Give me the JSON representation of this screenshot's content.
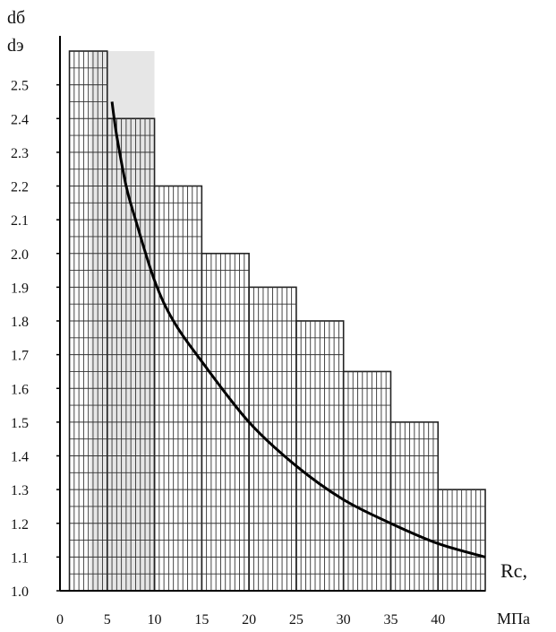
{
  "chart_data": {
    "type": "line",
    "ylabel_top": "dб",
    "ylabel_bottom": "dэ",
    "xlabel": "Rc,",
    "xunit": "МПа",
    "xlim": [
      0,
      45
    ],
    "ylim": [
      1.0,
      2.6
    ],
    "x_ticks": [
      "0",
      "5",
      "10",
      "15",
      "20",
      "25",
      "30",
      "35",
      "40"
    ],
    "y_ticks": [
      "1.0",
      "1.1",
      "1.2",
      "1.3",
      "1.4",
      "1.5",
      "1.6",
      "1.7",
      "1.8",
      "1.9",
      "2.0",
      "2.1",
      "2.2",
      "2.3",
      "2.4",
      "2.5"
    ],
    "grid": true,
    "grid_envelope": [
      {
        "x_start": 1,
        "x_end": 5,
        "top": 2.6
      },
      {
        "x_start": 5,
        "x_end": 10,
        "top": 2.4
      },
      {
        "x_start": 10,
        "x_end": 15,
        "top": 2.2
      },
      {
        "x_start": 15,
        "x_end": 20,
        "top": 2.0
      },
      {
        "x_start": 20,
        "x_end": 25,
        "top": 1.9
      },
      {
        "x_start": 25,
        "x_end": 30,
        "top": 1.8
      },
      {
        "x_start": 30,
        "x_end": 35,
        "top": 1.65
      },
      {
        "x_start": 35,
        "x_end": 40,
        "top": 1.5
      },
      {
        "x_start": 40,
        "x_end": 45,
        "top": 1.3
      }
    ],
    "series": [
      {
        "x": [
          5.5,
          6,
          7,
          8,
          10,
          12,
          15,
          20,
          25,
          30,
          35,
          40,
          45
        ],
        "y": [
          2.45,
          2.35,
          2.2,
          2.1,
          1.92,
          1.8,
          1.68,
          1.5,
          1.37,
          1.27,
          1.2,
          1.14,
          1.1
        ]
      }
    ]
  }
}
